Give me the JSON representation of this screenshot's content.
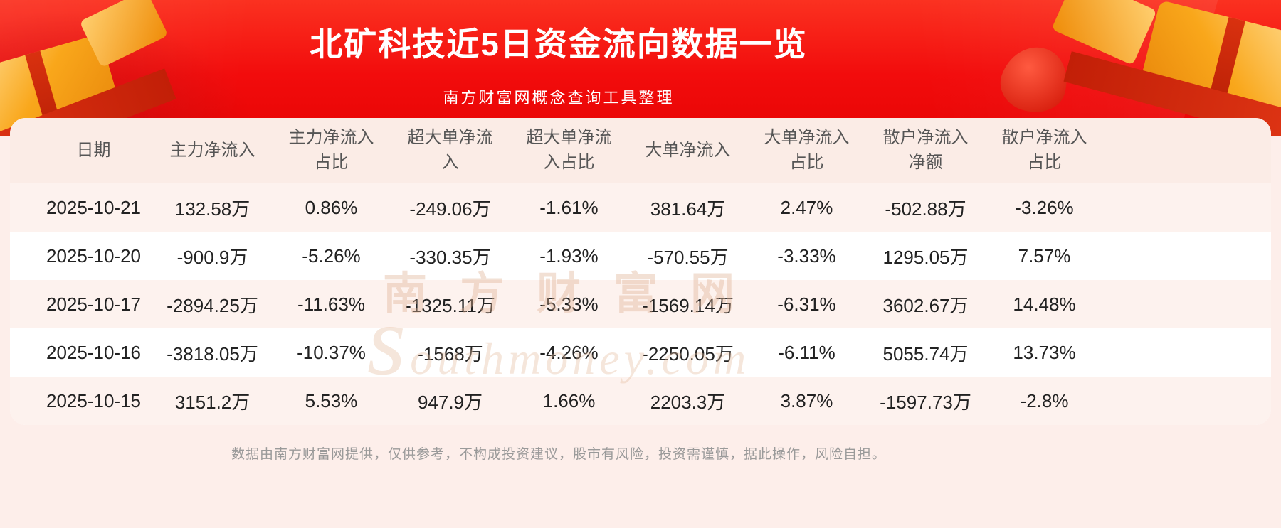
{
  "header": {
    "title": "北矿科技近5日资金流向数据一览",
    "subtitle": "南方财富网概念查询工具整理"
  },
  "watermark": {
    "cn": "南方财富网",
    "en": "southmoney.com"
  },
  "footer": {
    "text": "数据由南方财富网提供，仅供参考，不构成投资建议，股市有风险，投资需谨慎，据此操作，风险自担。"
  },
  "colors": {
    "banner_red": "#f20c0c",
    "page_pink": "#fdeeea",
    "card_white": "#ffffff",
    "header_row_pink": "#fbece6",
    "row_alt_pink": "#fdf2ee",
    "gold_accent": "#f5a623",
    "text_dark": "#222222",
    "text_gray": "#555555",
    "footer_gray": "#9a9a9a"
  },
  "chart_data": {
    "type": "table",
    "title": "北矿科技近5日资金流向数据一览",
    "subtitle": "南方财富网概念查询工具整理",
    "columns": [
      "日期",
      "主力净流入",
      "主力净流入占比",
      "超大单净流入",
      "超大单净流入占比",
      "大单净流入",
      "大单净流入占比",
      "散户净流入净额",
      "散户净流入占比"
    ],
    "columns_display": [
      "日期",
      "主力净流入",
      "主力净流入\n占比",
      "超大单净流\n入",
      "超大单净流\n入占比",
      "大单净流入",
      "大单净流入\n占比",
      "散户净流入\n净额",
      "散户净流入\n占比"
    ],
    "rows": [
      [
        "2025-10-21",
        "132.58万",
        "0.86%",
        "-249.06万",
        "-1.61%",
        "381.64万",
        "2.47%",
        "-502.88万",
        "-3.26%"
      ],
      [
        "2025-10-20",
        "-900.9万",
        "-5.26%",
        "-330.35万",
        "-1.93%",
        "-570.55万",
        "-3.33%",
        "1295.05万",
        "7.57%"
      ],
      [
        "2025-10-17",
        "-2894.25万",
        "-11.63%",
        "-1325.11万",
        "-5.33%",
        "-1569.14万",
        "-6.31%",
        "3602.67万",
        "14.48%"
      ],
      [
        "2025-10-16",
        "-3818.05万",
        "-10.37%",
        "-1568万",
        "-4.26%",
        "-2250.05万",
        "-6.11%",
        "5055.74万",
        "13.73%"
      ],
      [
        "2025-10-15",
        "3151.2万",
        "5.53%",
        "947.9万",
        "1.66%",
        "2203.3万",
        "3.87%",
        "-1597.73万",
        "-2.8%"
      ]
    ]
  }
}
